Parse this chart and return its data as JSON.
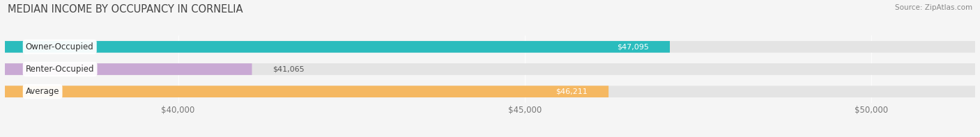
{
  "title": "MEDIAN INCOME BY OCCUPANCY IN CORNELIA",
  "source": "Source: ZipAtlas.com",
  "categories": [
    "Owner-Occupied",
    "Renter-Occupied",
    "Average"
  ],
  "values": [
    47095,
    41065,
    46211
  ],
  "bar_colors": [
    "#2bbcbd",
    "#c9a9d4",
    "#f5b862"
  ],
  "bar_bg_color": "#e4e4e4",
  "x_min": 37500,
  "x_max": 51500,
  "x_ticks": [
    40000,
    45000,
    50000
  ],
  "x_tick_labels": [
    "$40,000",
    "$45,000",
    "$50,000"
  ],
  "bar_height": 0.52,
  "title_fontsize": 10.5,
  "label_fontsize": 8.5,
  "tick_fontsize": 8.5,
  "value_label_fontsize": 8,
  "background_color": "#f5f5f5",
  "bar_gap": 0.18
}
